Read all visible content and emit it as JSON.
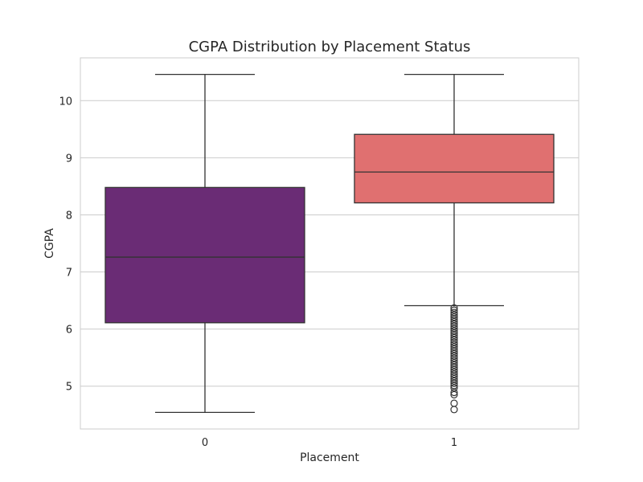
{
  "chart_data": {
    "type": "box",
    "title": "CGPA Distribution by Placement Status",
    "xlabel": "Placement",
    "ylabel": "CGPA",
    "categories": [
      "0",
      "1"
    ],
    "ylim": [
      4.25,
      10.75
    ],
    "yticks": [
      5,
      6,
      7,
      8,
      9,
      10
    ],
    "grid": true,
    "boxes": [
      {
        "category": "0",
        "whisker_low": 4.54,
        "q1": 6.11,
        "median": 7.26,
        "q3": 8.48,
        "whisker_high": 10.46,
        "color": "#6a2c75",
        "outliers": []
      },
      {
        "category": "1",
        "whisker_low": 6.41,
        "q1": 8.21,
        "median": 8.75,
        "q3": 9.41,
        "whisker_high": 10.46,
        "color": "#e07070",
        "outliers": [
          6.37,
          6.33,
          6.29,
          6.25,
          6.21,
          6.17,
          6.13,
          6.09,
          6.05,
          6.01,
          5.97,
          5.93,
          5.89,
          5.85,
          5.81,
          5.77,
          5.73,
          5.69,
          5.65,
          5.61,
          5.57,
          5.53,
          5.49,
          5.45,
          5.41,
          5.37,
          5.33,
          5.29,
          5.25,
          5.21,
          5.17,
          5.13,
          5.09,
          5.05,
          5.01,
          4.97,
          4.89,
          4.85,
          4.7,
          4.59
        ]
      }
    ]
  }
}
